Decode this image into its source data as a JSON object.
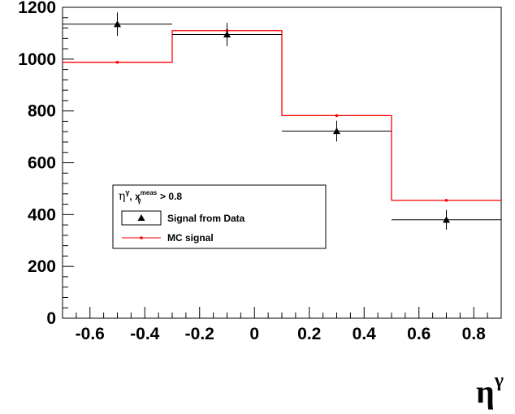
{
  "chart_data": {
    "type": "histogram",
    "title": "",
    "xlabel": "η",
    "xlabel_superscript": "γ",
    "ylabel": "",
    "xlim": [
      -0.7,
      0.9
    ],
    "ylim": [
      0,
      1200
    ],
    "x_ticks": [
      -0.6,
      -0.4,
      -0.2,
      0,
      0.2,
      0.4,
      0.6,
      0.8
    ],
    "x_tick_labels": [
      "-0.6",
      "-0.4",
      "-0.2",
      "0",
      "0.2",
      "0.4",
      "0.6",
      "0.8"
    ],
    "y_ticks": [
      0,
      200,
      400,
      600,
      800,
      1000,
      1200
    ],
    "y_tick_labels": [
      "0",
      "200",
      "400",
      "600",
      "800",
      "1000",
      "1200"
    ],
    "bins": [
      [
        -0.7,
        -0.3
      ],
      [
        -0.3,
        0.1
      ],
      [
        0.1,
        0.5
      ],
      [
        0.5,
        0.9
      ]
    ],
    "grid": false,
    "legend": {
      "placement": "center-left",
      "header": {
        "symbol": "η",
        "sup": "γ",
        "mid": ", x",
        "sup2": "meas",
        "sub": "γ",
        "tail": " > 0.8"
      },
      "entries": [
        "Signal from Data",
        "MC signal"
      ]
    },
    "series": [
      {
        "name": "Signal from Data",
        "style": "points-with-errors",
        "color": "#000000",
        "marker": "triangle",
        "x": [
          -0.5,
          -0.1,
          0.3,
          0.7
        ],
        "y": [
          1135,
          1095,
          722,
          380
        ],
        "yerr": [
          45,
          45,
          40,
          38
        ]
      },
      {
        "name": "MC signal",
        "style": "step",
        "color": "#ff0000",
        "marker": "dot",
        "x": [
          -0.5,
          -0.1,
          0.3,
          0.7
        ],
        "y": [
          988,
          1110,
          782,
          455
        ]
      }
    ]
  }
}
